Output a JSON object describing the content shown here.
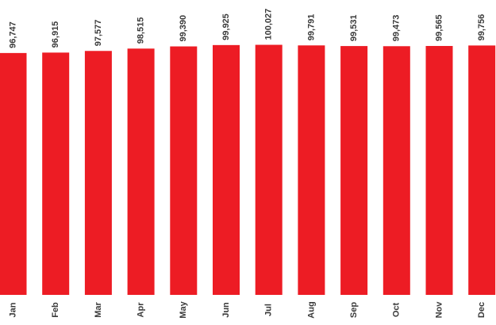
{
  "chart_data": {
    "type": "bar",
    "categories": [
      "Jan",
      "Feb",
      "Mar",
      "Apr",
      "May",
      "Jun",
      "Jul",
      "Aug",
      "Sep",
      "Oct",
      "Nov",
      "Dec"
    ],
    "values": [
      96747,
      96915,
      97577,
      98515,
      99390,
      99925,
      100027,
      99791,
      99531,
      99473,
      99565,
      99756
    ],
    "value_labels": [
      "96,747",
      "96,915",
      "97,577",
      "98,515",
      "99,390",
      "99,925",
      "100,027",
      "99,791",
      "99,531",
      "99,473",
      "99,565",
      "99,756"
    ],
    "color": "#ed1c24",
    "ylim": [
      0,
      104000
    ]
  }
}
